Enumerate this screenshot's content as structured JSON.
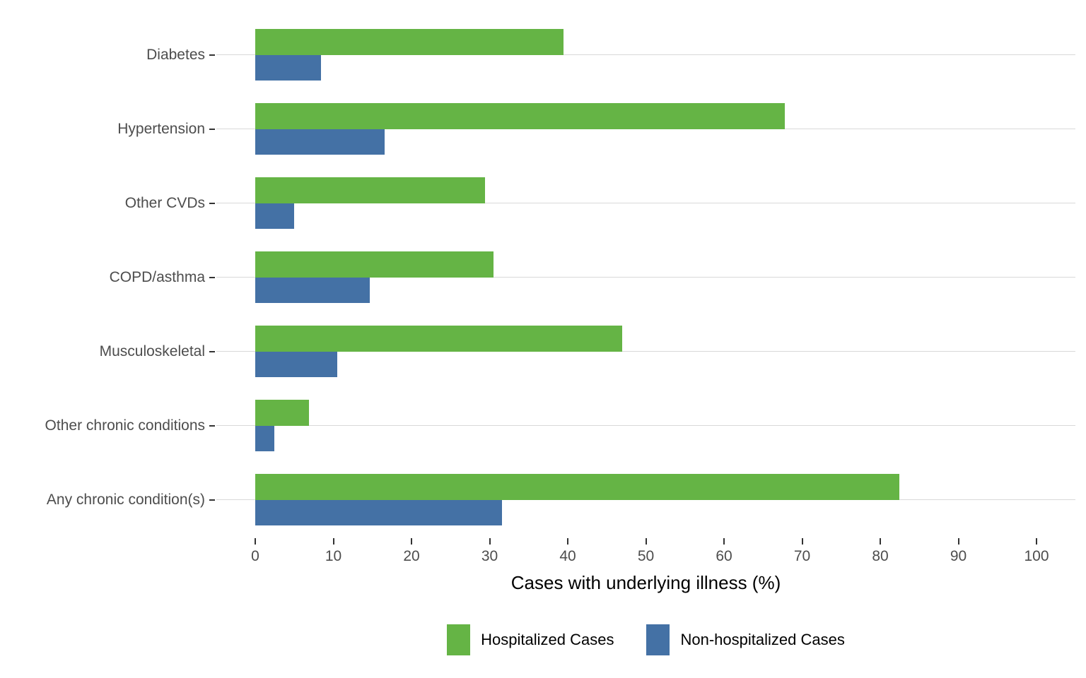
{
  "chart_data": {
    "type": "bar",
    "orientation": "horizontal",
    "title": "",
    "xlabel": "Cases with underlying illness (%)",
    "ylabel": "",
    "xlim": [
      0,
      100
    ],
    "x_ticks": [
      0,
      10,
      20,
      30,
      40,
      50,
      60,
      70,
      80,
      90,
      100
    ],
    "grid": "horizontal category gridlines only",
    "legend_position": "bottom",
    "categories": [
      "Diabetes",
      "Hypertension",
      "Other CVDs",
      "COPD/asthma",
      "Musculoskeletal",
      "Other chronic conditions",
      "Any chronic condition(s)"
    ],
    "series": [
      {
        "name": "Hospitalized Cases",
        "color": "#65b445",
        "values": [
          39.5,
          67.8,
          29.4,
          30.5,
          47.0,
          6.9,
          82.4
        ]
      },
      {
        "name": "Non-hospitalized Cases",
        "color": "#4471a5",
        "values": [
          8.4,
          16.6,
          5.0,
          14.7,
          10.5,
          2.4,
          31.6
        ]
      }
    ]
  },
  "colors": {
    "background": "#ffffff",
    "gridline": "#d9d9d9",
    "tick_mark": "#333333",
    "axis_text": "#4d4d4d",
    "title_text": "#000000"
  }
}
